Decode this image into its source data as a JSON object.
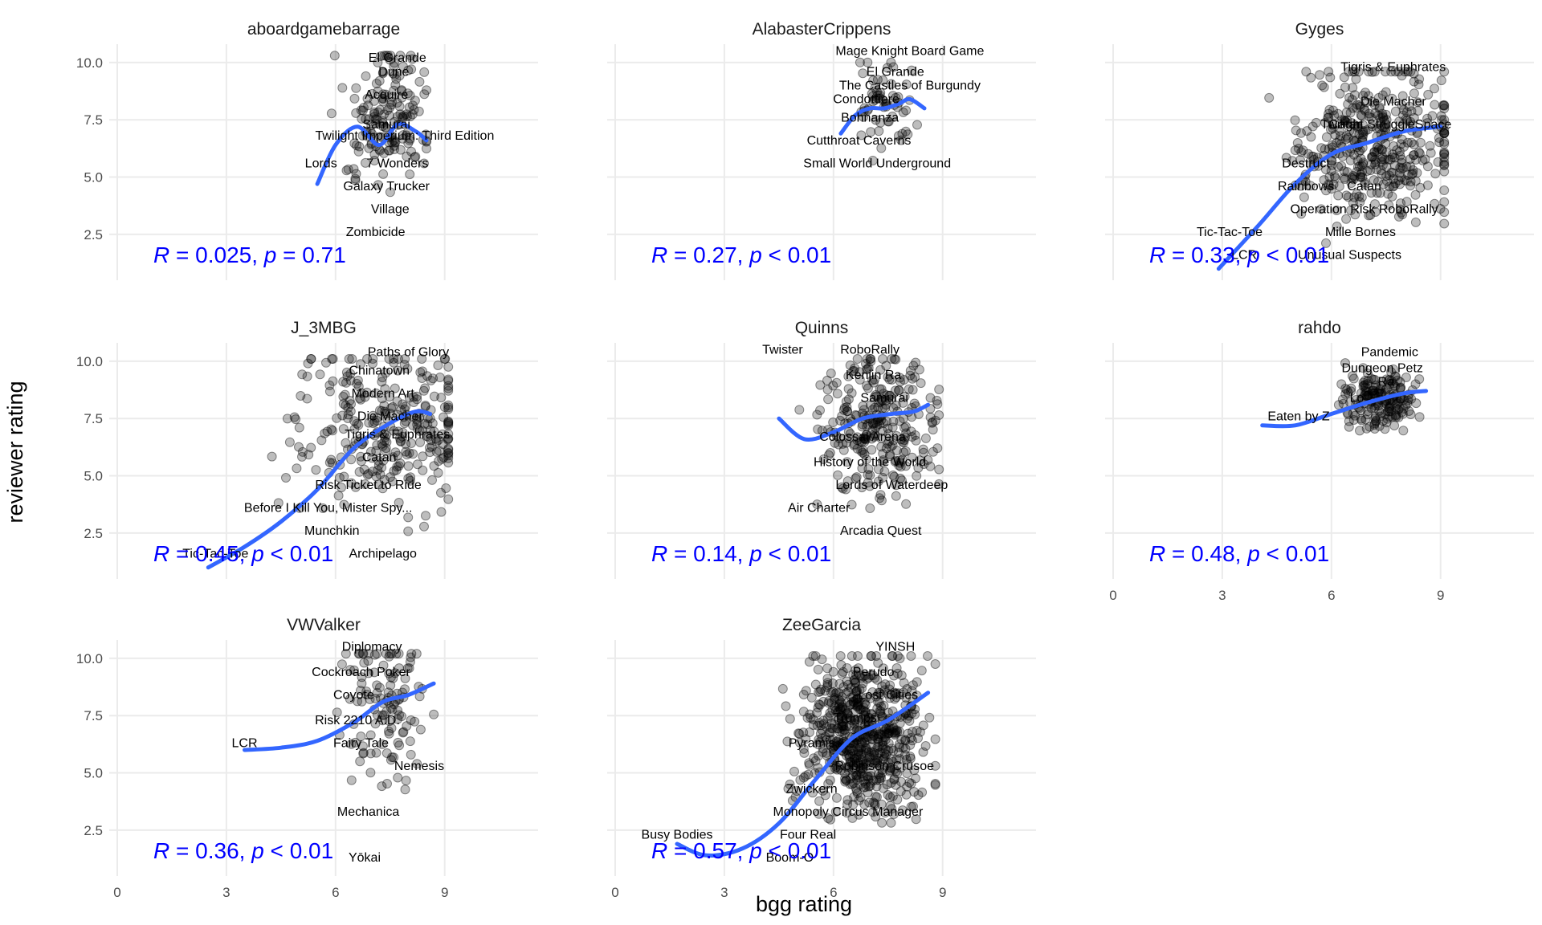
{
  "chart_data": {
    "type": "scatter",
    "xlabel": "bgg rating",
    "ylabel": "reviewer rating",
    "xlim": [
      0,
      11.5
    ],
    "ylim": [
      0.5,
      10.8
    ],
    "xticks": [
      0,
      3,
      6,
      9
    ],
    "yticks": [
      2.5,
      5.0,
      7.5,
      10.0
    ],
    "ytick_labels": [
      "2.5",
      "5.0",
      "7.5",
      "10.0"
    ],
    "grid": true,
    "colors": {
      "points": "#000000",
      "smooth": "#3366ff",
      "stat": "#0000ff"
    },
    "panels": [
      {
        "name": "aboardgamebarrage",
        "stat_r": "0.025",
        "stat_op": "=",
        "stat_p": "0.71",
        "labels": [
          {
            "text": "El Grande",
            "x": 7.7,
            "y": 10.2
          },
          {
            "text": "Dune",
            "x": 7.6,
            "y": 9.6
          },
          {
            "text": "Acquire",
            "x": 7.4,
            "y": 8.6
          },
          {
            "text": "Samurai",
            "x": 7.4,
            "y": 7.3
          },
          {
            "text": "Twilight Imperium: Third Edition",
            "x": 7.9,
            "y": 6.8
          },
          {
            "text": "Lords",
            "x": 5.6,
            "y": 5.6
          },
          {
            "text": "7 Wonders",
            "x": 7.7,
            "y": 5.6
          },
          {
            "text": "Galaxy Trucker",
            "x": 7.4,
            "y": 4.6
          },
          {
            "text": "Village",
            "x": 7.5,
            "y": 3.6
          },
          {
            "text": "Zombicide",
            "x": 7.1,
            "y": 2.6
          }
        ],
        "smooth": {
          "x": [
            5.5,
            6.0,
            6.6,
            7.2,
            7.7,
            8.2,
            8.5
          ],
          "y": [
            4.7,
            6.4,
            7.2,
            6.4,
            7.3,
            7.0,
            6.6
          ]
        },
        "cloud": {
          "xmin": 5.5,
          "xmax": 8.5,
          "ymin": 2.0,
          "ymax": 10.3,
          "cx": 7.4,
          "cy": 7.5,
          "n": 160,
          "seed": 11
        }
      },
      {
        "name": "AlabasterCrippens",
        "stat_r": "0.27",
        "stat_op": "<",
        "stat_p": "0.01",
        "labels": [
          {
            "text": "Mage Knight Board Game",
            "x": 8.1,
            "y": 10.5
          },
          {
            "text": "El Grande",
            "x": 7.7,
            "y": 9.6
          },
          {
            "text": "The Castles of Burgundy",
            "x": 8.1,
            "y": 9.0
          },
          {
            "text": "Condottiere",
            "x": 6.9,
            "y": 8.4
          },
          {
            "text": "Bohnanza",
            "x": 7.0,
            "y": 7.6
          },
          {
            "text": "Cutthroat Caverns",
            "x": 6.7,
            "y": 6.6
          },
          {
            "text": "Small World Underground",
            "x": 7.2,
            "y": 5.6
          }
        ],
        "smooth": {
          "x": [
            6.2,
            6.6,
            7.0,
            7.4,
            7.8,
            8.1,
            8.5
          ],
          "y": [
            6.9,
            7.7,
            8.0,
            8.0,
            8.2,
            8.4,
            8.0
          ]
        },
        "cloud": {
          "xmin": 6.2,
          "xmax": 8.6,
          "ymin": 4.8,
          "ymax": 10.0,
          "cx": 7.5,
          "cy": 8.2,
          "n": 60,
          "seed": 23
        }
      },
      {
        "name": "Gyges",
        "stat_r": "0.33",
        "stat_op": "<",
        "stat_p": "0.01",
        "labels": [
          {
            "text": "Tigris & Euphrates",
            "x": 7.7,
            "y": 9.8
          },
          {
            "text": "Die Macher",
            "x": 7.7,
            "y": 8.3
          },
          {
            "text": "Catan",
            "x": 6.4,
            "y": 7.3
          },
          {
            "text": "Twilight Struggle",
            "x": 7.0,
            "y": 7.3
          },
          {
            "text": "Space",
            "x": 8.8,
            "y": 7.3
          },
          {
            "text": "Destruct",
            "x": 5.3,
            "y": 5.6
          },
          {
            "text": "Rainbows",
            "x": 5.3,
            "y": 4.6
          },
          {
            "text": "Catan",
            "x": 6.9,
            "y": 4.6
          },
          {
            "text": "Operation Risk RoboRally",
            "x": 6.9,
            "y": 3.6
          },
          {
            "text": "Tic-Tac-Toe",
            "x": 3.2,
            "y": 2.6
          },
          {
            "text": "Mille Bornes",
            "x": 6.8,
            "y": 2.6
          },
          {
            "text": "LCR",
            "x": 3.6,
            "y": 1.6
          },
          {
            "text": "Unusual Suspects",
            "x": 6.5,
            "y": 1.6
          }
        ],
        "smooth": {
          "x": [
            2.9,
            4.0,
            5.0,
            6.0,
            7.0,
            8.0,
            9.0
          ],
          "y": [
            1.0,
            2.9,
            4.7,
            6.0,
            6.5,
            7.0,
            7.2
          ]
        },
        "cloud": {
          "xmin": 2.9,
          "xmax": 9.1,
          "ymin": 0.8,
          "ymax": 9.6,
          "cx": 7.2,
          "cy": 6.5,
          "n": 420,
          "seed": 37
        }
      },
      {
        "name": "J_3MBG",
        "stat_r": "0.45",
        "stat_op": "<",
        "stat_p": "0.01",
        "labels": [
          {
            "text": "Paths of Glory",
            "x": 8.0,
            "y": 10.4
          },
          {
            "text": "Chinatown",
            "x": 7.2,
            "y": 9.6
          },
          {
            "text": "Modern Art",
            "x": 7.3,
            "y": 8.6
          },
          {
            "text": "Die Macher",
            "x": 7.5,
            "y": 7.6
          },
          {
            "text": "Tigris & Euphrates",
            "x": 7.7,
            "y": 6.8
          },
          {
            "text": "Catan",
            "x": 7.2,
            "y": 5.8
          },
          {
            "text": "Risk Ticket to Ride",
            "x": 6.9,
            "y": 4.6
          },
          {
            "text": "Before I Kill You, Mister Spy...",
            "x": 5.8,
            "y": 3.6
          },
          {
            "text": "Munchkin",
            "x": 5.9,
            "y": 2.6
          },
          {
            "text": "Tic-Tac-Toe",
            "x": 2.7,
            "y": 1.6
          },
          {
            "text": "Archipelago",
            "x": 7.3,
            "y": 1.6
          }
        ],
        "smooth": {
          "x": [
            2.5,
            3.5,
            4.5,
            5.5,
            6.5,
            7.5,
            8.2,
            8.6
          ],
          "y": [
            1.0,
            1.9,
            3.0,
            4.4,
            6.2,
            7.3,
            7.8,
            7.7
          ]
        },
        "cloud": {
          "xmin": 2.5,
          "xmax": 9.1,
          "ymin": 0.8,
          "ymax": 10.1,
          "cx": 7.3,
          "cy": 7.2,
          "n": 300,
          "seed": 41
        }
      },
      {
        "name": "Quinns",
        "stat_r": "0.14",
        "stat_op": "<",
        "stat_p": "0.01",
        "labels": [
          {
            "text": "Twister",
            "x": 4.6,
            "y": 10.5
          },
          {
            "text": "RoboRally",
            "x": 7.0,
            "y": 10.5
          },
          {
            "text": "Kenjin Ra",
            "x": 7.1,
            "y": 9.4
          },
          {
            "text": "Samurai",
            "x": 7.4,
            "y": 8.4
          },
          {
            "text": "Colossal Arena",
            "x": 6.8,
            "y": 6.7
          },
          {
            "text": "History of the World",
            "x": 7.0,
            "y": 5.6
          },
          {
            "text": "Lords of Waterdeep",
            "x": 7.6,
            "y": 4.6
          },
          {
            "text": "Air Charter",
            "x": 5.6,
            "y": 3.6
          },
          {
            "text": "Arcadia Quest",
            "x": 7.3,
            "y": 2.6
          }
        ],
        "smooth": {
          "x": [
            4.5,
            5.2,
            6.0,
            6.8,
            7.6,
            8.2,
            8.6
          ],
          "y": [
            7.5,
            6.6,
            6.9,
            7.5,
            7.7,
            7.8,
            8.1
          ]
        },
        "cloud": {
          "xmin": 4.6,
          "xmax": 8.9,
          "ymin": 1.8,
          "ymax": 10.1,
          "cx": 7.2,
          "cy": 7.4,
          "n": 280,
          "seed": 53
        }
      },
      {
        "name": "rahdo",
        "stat_r": "0.48",
        "stat_op": "<",
        "stat_p": "0.01",
        "labels": [
          {
            "text": "Pandemic",
            "x": 7.6,
            "y": 10.4
          },
          {
            "text": "Dungeon Petz",
            "x": 7.4,
            "y": 9.7
          },
          {
            "text": "Ra",
            "x": 7.5,
            "y": 9.1
          },
          {
            "text": "Lo",
            "x": 6.7,
            "y": 8.4
          },
          {
            "text": "Eaten by Z",
            "x": 5.1,
            "y": 7.6
          }
        ],
        "smooth": {
          "x": [
            4.1,
            5.0,
            6.0,
            7.0,
            8.0,
            8.6
          ],
          "y": [
            7.2,
            7.2,
            7.7,
            8.2,
            8.6,
            8.7
          ]
        },
        "cloud": {
          "xmin": 6.2,
          "xmax": 8.9,
          "ymin": 6.7,
          "ymax": 10.0,
          "cx": 7.4,
          "cy": 8.3,
          "n": 180,
          "seed": 67
        }
      },
      {
        "name": "VWValker",
        "stat_r": "0.36",
        "stat_op": "<",
        "stat_p": "0.01",
        "labels": [
          {
            "text": "Diplomacy",
            "x": 7.0,
            "y": 10.5
          },
          {
            "text": "Cockroach Poker",
            "x": 6.7,
            "y": 9.4
          },
          {
            "text": "Coyote",
            "x": 6.5,
            "y": 8.4
          },
          {
            "text": "Risk 2210 A.D.",
            "x": 6.6,
            "y": 7.3
          },
          {
            "text": "Fairy Tale",
            "x": 6.7,
            "y": 6.3
          },
          {
            "text": "LCR",
            "x": 3.5,
            "y": 6.3
          },
          {
            "text": "Nemesis",
            "x": 8.3,
            "y": 5.3
          },
          {
            "text": "Mechanica",
            "x": 6.9,
            "y": 3.3
          },
          {
            "text": "Yōkai",
            "x": 6.8,
            "y": 1.3
          }
        ],
        "smooth": {
          "x": [
            3.5,
            4.5,
            5.5,
            6.5,
            7.3,
            8.0,
            8.7
          ],
          "y": [
            6.0,
            6.1,
            6.4,
            7.2,
            8.1,
            8.4,
            8.9
          ]
        },
        "cloud": {
          "xmin": 6.0,
          "xmax": 8.7,
          "ymin": 0.8,
          "ymax": 10.2,
          "cx": 7.3,
          "cy": 8.0,
          "n": 120,
          "seed": 71
        }
      },
      {
        "name": "ZeeGarcia",
        "stat_r": "0.57",
        "stat_op": "<",
        "stat_p": "0.01",
        "labels": [
          {
            "text": "YINSH",
            "x": 7.7,
            "y": 10.5
          },
          {
            "text": "Perudo",
            "x": 7.1,
            "y": 9.4
          },
          {
            "text": "Lost Cities",
            "x": 7.5,
            "y": 8.4
          },
          {
            "text": "Trumps",
            "x": 6.6,
            "y": 7.4
          },
          {
            "text": "Pyramis",
            "x": 5.4,
            "y": 6.3
          },
          {
            "text": "Robinson Crusoe",
            "x": 7.4,
            "y": 5.3
          },
          {
            "text": "Zwickern",
            "x": 5.4,
            "y": 4.3
          },
          {
            "text": "Monopoly Circus Manager",
            "x": 6.4,
            "y": 3.3
          },
          {
            "text": "Busy Bodies",
            "x": 1.7,
            "y": 2.3
          },
          {
            "text": "Four Real",
            "x": 5.3,
            "y": 2.3
          },
          {
            "text": "Boom-O",
            "x": 4.8,
            "y": 1.3
          }
        ],
        "smooth": {
          "x": [
            1.7,
            2.5,
            3.5,
            4.5,
            5.5,
            6.5,
            7.5,
            8.6
          ],
          "y": [
            1.9,
            1.4,
            1.7,
            2.8,
            4.7,
            6.5,
            7.3,
            8.5
          ]
        },
        "cloud": {
          "xmin": 4.4,
          "xmax": 8.8,
          "ymin": 0.9,
          "ymax": 10.1,
          "cx": 6.8,
          "cy": 6.6,
          "n": 650,
          "seed": 89
        }
      }
    ]
  }
}
